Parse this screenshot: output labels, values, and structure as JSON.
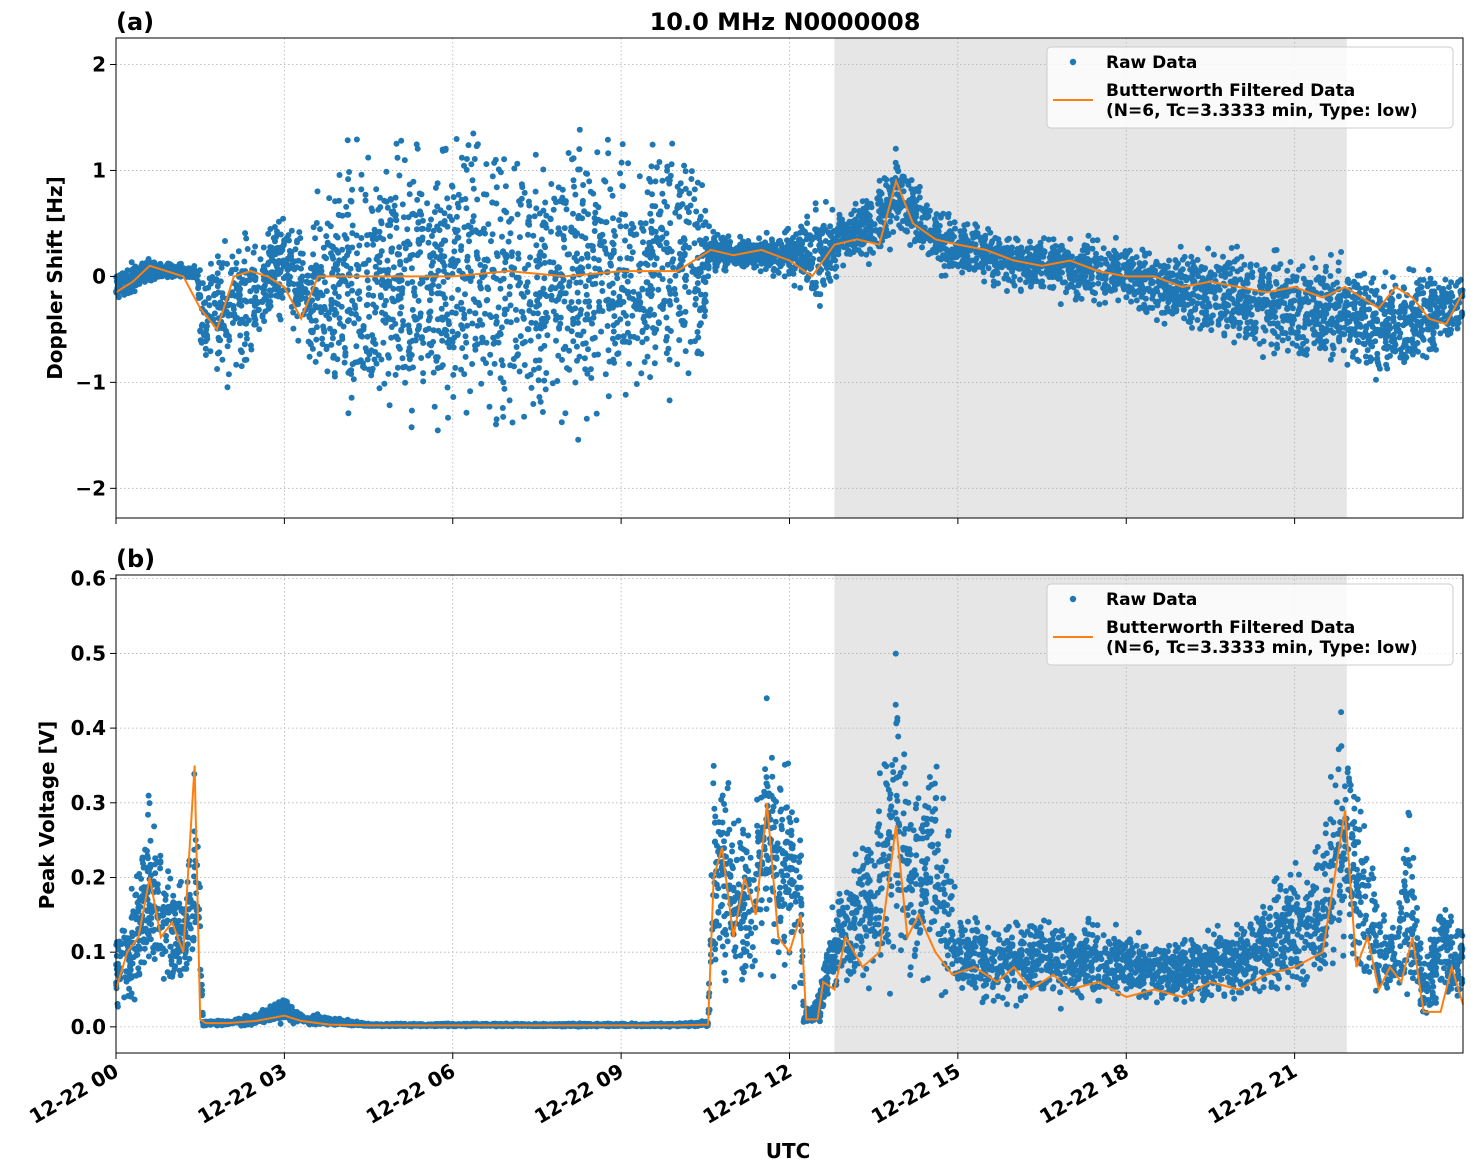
{
  "figure": {
    "title": "10.0 MHz N0000008",
    "xlabel": "UTC",
    "shade_color": "#e6e6e6",
    "raw_color": "#1f77b4",
    "filtered_color": "#ff7f0e"
  },
  "chart_data": [
    {
      "type": "scatter",
      "panel_label": "(a)",
      "title": "10.0 MHz N0000008",
      "xlabel": "",
      "ylabel": "Doppler Shift [Hz]",
      "xlim_hours": [
        0,
        24
      ],
      "ylim": [
        -2.28,
        2.25
      ],
      "yticks": [
        2,
        1,
        0,
        -1,
        -2
      ],
      "ytick_labels": [
        "2",
        "1",
        "0",
        "−1",
        "−2"
      ],
      "xticks_hours": [
        0,
        3,
        6,
        9,
        12,
        15,
        18,
        21
      ],
      "grid": true,
      "legend_position": "top-right",
      "shaded_span_hours": [
        12.8,
        21.93
      ],
      "series": [
        {
          "name": "Raw Data",
          "kind": "points",
          "envelope_hours": [
            0,
            0.5,
            1.0,
            1.45,
            1.5,
            2.0,
            2.5,
            3.0,
            3.4,
            4.2,
            5.0,
            6.0,
            7.0,
            8.0,
            9.0,
            10.0,
            10.5,
            10.6,
            11.0,
            11.5,
            12.0,
            12.5,
            13.0,
            13.5,
            13.9,
            14.5,
            15.0,
            16.0,
            17.0,
            18.0,
            19.0,
            20.0,
            21.0,
            22.0,
            22.5,
            23.0,
            24.0
          ],
          "envelope_low": [
            -0.3,
            -0.1,
            -0.05,
            -0.05,
            -1.0,
            -1.3,
            -0.8,
            -0.5,
            -1.0,
            -1.8,
            -1.8,
            -1.8,
            -1.9,
            -1.7,
            -1.5,
            -1.3,
            -1.0,
            -0.05,
            0.05,
            0.0,
            -0.1,
            -0.4,
            0.1,
            0.0,
            0.3,
            0.0,
            -0.1,
            -0.2,
            -0.3,
            -0.4,
            -0.6,
            -0.8,
            -0.9,
            -1.0,
            -1.2,
            -1.1,
            -0.6
          ],
          "envelope_high": [
            0.1,
            0.2,
            0.15,
            0.1,
            0.3,
            0.6,
            0.5,
            0.8,
            0.6,
            1.6,
            1.7,
            1.7,
            1.7,
            1.6,
            1.6,
            1.7,
            1.2,
            0.5,
            0.4,
            0.4,
            0.5,
            0.8,
            0.7,
            0.9,
            1.3,
            0.8,
            0.6,
            0.5,
            0.45,
            0.4,
            0.4,
            0.4,
            0.35,
            0.3,
            0.3,
            0.2,
            0.1
          ]
        },
        {
          "name": "Butterworth Filtered Data\n(N=6, Tc=3.3333 min, Type: low)",
          "kind": "line",
          "x_hours": [
            0,
            0.3,
            0.6,
            0.9,
            1.2,
            1.5,
            1.8,
            2.1,
            2.4,
            2.7,
            3.0,
            3.3,
            3.6,
            4.0,
            5.0,
            6.0,
            7.0,
            8.0,
            9.0,
            10.0,
            10.6,
            11.0,
            11.5,
            12.0,
            12.4,
            12.8,
            13.2,
            13.6,
            13.9,
            14.2,
            14.6,
            15.0,
            15.5,
            16.0,
            16.5,
            17.0,
            17.5,
            18.0,
            18.5,
            19.0,
            19.5,
            20.0,
            20.5,
            21.0,
            21.5,
            21.9,
            22.2,
            22.5,
            22.8,
            23.1,
            23.4,
            23.7,
            24.0
          ],
          "y": [
            -0.15,
            -0.05,
            0.1,
            0.05,
            0.0,
            -0.3,
            -0.5,
            0.0,
            0.05,
            0.0,
            -0.1,
            -0.4,
            0.0,
            0.0,
            0.0,
            0.0,
            0.05,
            0.0,
            0.05,
            0.05,
            0.25,
            0.2,
            0.25,
            0.15,
            0.0,
            0.3,
            0.35,
            0.3,
            0.9,
            0.5,
            0.35,
            0.3,
            0.25,
            0.15,
            0.1,
            0.15,
            0.05,
            0.0,
            0.0,
            -0.1,
            -0.05,
            -0.1,
            -0.15,
            -0.1,
            -0.2,
            -0.1,
            -0.2,
            -0.3,
            -0.1,
            -0.2,
            -0.4,
            -0.45,
            -0.15
          ]
        }
      ]
    },
    {
      "type": "scatter",
      "panel_label": "(b)",
      "title": "",
      "xlabel": "UTC",
      "ylabel": "Peak Voltage [V]",
      "xlim_hours": [
        0,
        24
      ],
      "ylim": [
        -0.035,
        0.605
      ],
      "yticks": [
        0.6,
        0.5,
        0.4,
        0.3,
        0.2,
        0.1,
        0.0
      ],
      "ytick_labels": [
        "0.6",
        "0.5",
        "0.4",
        "0.3",
        "0.2",
        "0.1",
        "0.0"
      ],
      "xticks_hours": [
        0,
        3,
        6,
        9,
        12,
        15,
        18,
        21
      ],
      "xtick_labels": [
        "12-22 00",
        "12-22 03",
        "12-22 06",
        "12-22 09",
        "12-22 12",
        "12-22 15",
        "12-22 18",
        "12-22 21"
      ],
      "grid": true,
      "legend_position": "top-right",
      "shaded_span_hours": [
        12.8,
        21.93
      ],
      "series": [
        {
          "name": "Raw Data",
          "kind": "points",
          "envelope_hours": [
            0,
            0.3,
            0.6,
            0.9,
            1.2,
            1.45,
            1.55,
            2.0,
            2.5,
            3.0,
            3.3,
            3.8,
            4.5,
            6.0,
            8.0,
            10.0,
            10.55,
            10.65,
            11.0,
            11.3,
            11.6,
            11.9,
            12.2,
            12.25,
            12.5,
            12.8,
            13.1,
            13.5,
            13.9,
            14.2,
            14.6,
            15.0,
            15.5,
            16.0,
            17.0,
            18.0,
            19.0,
            20.0,
            20.5,
            21.0,
            21.5,
            21.9,
            22.2,
            22.5,
            22.8,
            23.0,
            23.3,
            23.6,
            24.0
          ],
          "envelope_low": [
            0.0,
            0.02,
            0.03,
            0.02,
            0.02,
            0.02,
            0.0,
            0.0,
            0.0,
            0.0,
            0.0,
            0.0,
            0.0,
            0.0,
            0.0,
            0.0,
            0.0,
            0.03,
            0.03,
            0.02,
            0.03,
            0.03,
            0.02,
            0.0,
            0.0,
            0.02,
            0.02,
            0.02,
            0.03,
            0.02,
            0.02,
            0.02,
            0.02,
            0.02,
            0.02,
            0.02,
            0.02,
            0.02,
            0.02,
            0.02,
            0.02,
            0.02,
            0.02,
            0.02,
            0.02,
            0.0,
            0.0,
            0.01,
            0.01
          ],
          "envelope_high": [
            0.15,
            0.2,
            0.35,
            0.25,
            0.2,
            0.4,
            0.01,
            0.01,
            0.02,
            0.045,
            0.02,
            0.015,
            0.005,
            0.005,
            0.005,
            0.005,
            0.01,
            0.4,
            0.35,
            0.3,
            0.45,
            0.4,
            0.32,
            0.02,
            0.05,
            0.2,
            0.25,
            0.3,
            0.55,
            0.35,
            0.45,
            0.18,
            0.15,
            0.17,
            0.16,
            0.14,
            0.14,
            0.15,
            0.2,
            0.25,
            0.3,
            0.48,
            0.35,
            0.2,
            0.15,
            0.35,
            0.1,
            0.2,
            0.15
          ]
        },
        {
          "name": "Butterworth Filtered Data\n(N=6, Tc=3.3333 min, Type: low)",
          "kind": "line",
          "x_hours": [
            0,
            0.2,
            0.4,
            0.6,
            0.8,
            1.0,
            1.2,
            1.4,
            1.5,
            1.6,
            2.0,
            2.5,
            3.0,
            3.3,
            3.8,
            4.5,
            6.0,
            8.0,
            10.0,
            10.55,
            10.65,
            10.8,
            11.0,
            11.2,
            11.4,
            11.6,
            11.8,
            12.0,
            12.2,
            12.3,
            12.5,
            12.6,
            12.8,
            13.0,
            13.3,
            13.6,
            13.9,
            14.1,
            14.3,
            14.6,
            14.9,
            15.3,
            15.7,
            16.0,
            16.3,
            16.7,
            17.0,
            17.5,
            18.0,
            18.5,
            19.0,
            19.5,
            20.0,
            20.5,
            21.0,
            21.5,
            21.9,
            22.1,
            22.3,
            22.5,
            22.7,
            22.9,
            23.1,
            23.3,
            23.6,
            23.8,
            24.0
          ],
          "y": [
            0.05,
            0.1,
            0.12,
            0.2,
            0.12,
            0.14,
            0.1,
            0.35,
            0.01,
            0.005,
            0.005,
            0.008,
            0.015,
            0.008,
            0.003,
            0.002,
            0.002,
            0.002,
            0.002,
            0.003,
            0.2,
            0.24,
            0.12,
            0.2,
            0.15,
            0.3,
            0.12,
            0.1,
            0.15,
            0.01,
            0.01,
            0.06,
            0.05,
            0.12,
            0.08,
            0.1,
            0.27,
            0.12,
            0.15,
            0.1,
            0.07,
            0.08,
            0.06,
            0.08,
            0.05,
            0.07,
            0.05,
            0.06,
            0.04,
            0.05,
            0.04,
            0.06,
            0.05,
            0.07,
            0.08,
            0.1,
            0.29,
            0.08,
            0.12,
            0.05,
            0.08,
            0.06,
            0.12,
            0.02,
            0.02,
            0.08,
            0.03
          ]
        }
      ]
    }
  ]
}
